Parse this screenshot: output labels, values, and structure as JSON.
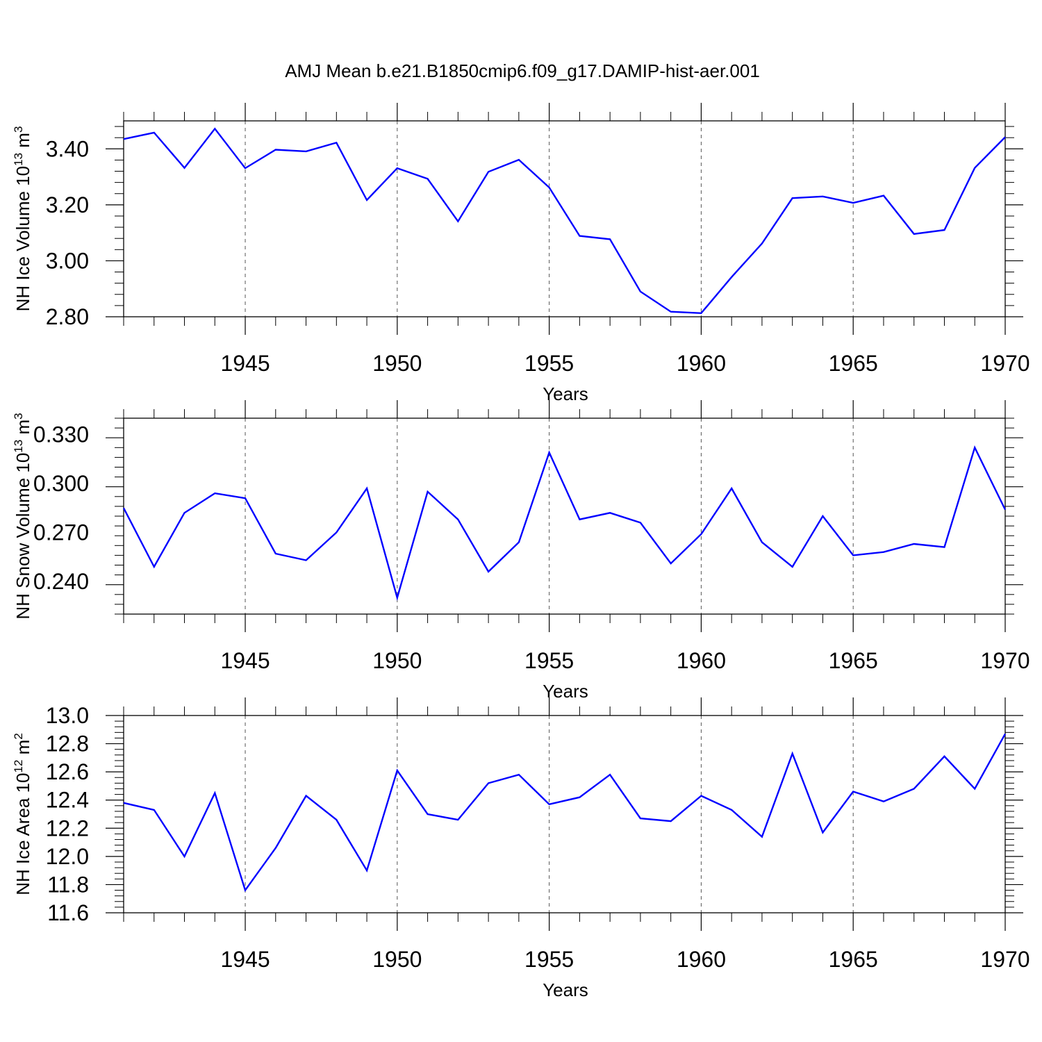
{
  "title": "AMJ Mean b.e21.B1850cmip6.f09_g17.DAMIP-hist-aer.001",
  "chart_data": [
    {
      "type": "line",
      "name": "ice-volume",
      "ylabel_main": "NH Ice Volume 10",
      "ylabel_exp": "13",
      "ylabel_unit": " m",
      "ylabel_unit_exp": "3",
      "xlabel": "Years",
      "xlim": [
        1941,
        1970
      ],
      "ylim": [
        2.8,
        3.5
      ],
      "yticks": [
        "2.80",
        "3.00",
        "3.20",
        "3.40"
      ],
      "xticks": [
        "1945",
        "1950",
        "1955",
        "1960",
        "1965",
        "1970"
      ],
      "x": [
        1941,
        1942,
        1943,
        1944,
        1945,
        1946,
        1947,
        1948,
        1949,
        1950,
        1951,
        1952,
        1953,
        1954,
        1955,
        1956,
        1957,
        1958,
        1959,
        1960,
        1961,
        1962,
        1963,
        1964,
        1965,
        1966,
        1967,
        1968,
        1969,
        1970
      ],
      "values": [
        3.435,
        3.458,
        3.332,
        3.472,
        3.331,
        3.397,
        3.391,
        3.422,
        3.217,
        3.331,
        3.293,
        3.141,
        3.318,
        3.361,
        3.262,
        3.089,
        3.077,
        2.89,
        2.818,
        2.813,
        2.942,
        3.062,
        3.224,
        3.23,
        3.207,
        3.233,
        3.096,
        3.11,
        3.332,
        3.442
      ],
      "color": "#0000ff"
    },
    {
      "type": "line",
      "name": "snow-volume",
      "ylabel_main": "NH Snow Volume 10",
      "ylabel_exp": "13",
      "ylabel_unit": " m",
      "ylabel_unit_exp": "3",
      "xlabel": "Years",
      "xlim": [
        1941,
        1970
      ],
      "ylim": [
        0.22,
        0.34
      ],
      "yticks": [
        "0.240",
        "0.270",
        "0.300",
        "0.330"
      ],
      "xticks": [
        "1945",
        "1950",
        "1955",
        "1960",
        "1965",
        "1970"
      ],
      "x": [
        1941,
        1942,
        1943,
        1944,
        1945,
        1946,
        1947,
        1948,
        1949,
        1950,
        1951,
        1952,
        1953,
        1954,
        1955,
        1956,
        1957,
        1958,
        1959,
        1960,
        1961,
        1962,
        1963,
        1964,
        1965,
        1966,
        1967,
        1968,
        1969,
        1970
      ],
      "values": [
        0.285,
        0.249,
        0.282,
        0.294,
        0.291,
        0.257,
        0.253,
        0.27,
        0.297,
        0.23,
        0.295,
        0.278,
        0.246,
        0.264,
        0.319,
        0.278,
        0.282,
        0.276,
        0.251,
        0.269,
        0.297,
        0.264,
        0.249,
        0.28,
        0.256,
        0.258,
        0.263,
        0.261,
        0.322,
        0.284
      ],
      "color": "#0000ff"
    },
    {
      "type": "line",
      "name": "ice-area",
      "ylabel_main": "NH Ice Area 10",
      "ylabel_exp": "12",
      "ylabel_unit": " m",
      "ylabel_unit_exp": "2",
      "xlabel": "Years",
      "xlim": [
        1941,
        1970
      ],
      "ylim": [
        11.6,
        13.0
      ],
      "yticks": [
        "11.6",
        "11.8",
        "12.0",
        "12.2",
        "12.4",
        "12.6",
        "12.8",
        "13.0"
      ],
      "xticks": [
        "1945",
        "1950",
        "1955",
        "1960",
        "1965",
        "1970"
      ],
      "x": [
        1941,
        1942,
        1943,
        1944,
        1945,
        1946,
        1947,
        1948,
        1949,
        1950,
        1951,
        1952,
        1953,
        1954,
        1955,
        1956,
        1957,
        1958,
        1959,
        1960,
        1961,
        1962,
        1963,
        1964,
        1965,
        1966,
        1967,
        1968,
        1969,
        1970
      ],
      "values": [
        12.38,
        12.33,
        12.0,
        12.45,
        11.76,
        12.06,
        12.43,
        12.26,
        11.9,
        12.61,
        12.3,
        12.26,
        12.52,
        12.58,
        12.37,
        12.42,
        12.58,
        12.27,
        12.25,
        12.43,
        12.33,
        12.14,
        12.73,
        12.17,
        12.46,
        12.39,
        12.48,
        12.71,
        12.48,
        12.87
      ],
      "color": "#0000ff"
    }
  ]
}
